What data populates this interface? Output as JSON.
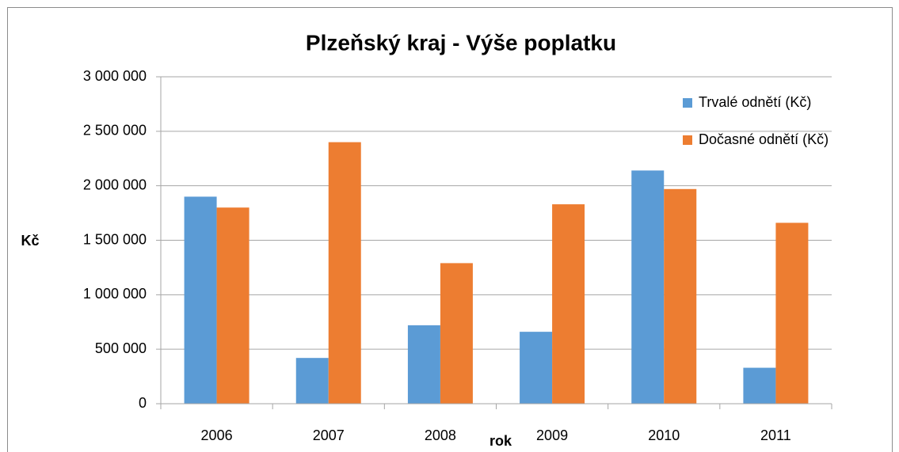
{
  "chart_data": {
    "type": "bar",
    "title": "Plzeňský kraj - Výše poplatku",
    "x_label": "rok",
    "y_label": "Kč",
    "categories": [
      "2006",
      "2007",
      "2008",
      "2009",
      "2010",
      "2011"
    ],
    "series": [
      {
        "name": "Trvalé odnětí (Kč)",
        "color": "#5b9bd5",
        "values": [
          1900000,
          420000,
          720000,
          660000,
          2140000,
          330000
        ]
      },
      {
        "name": "Dočasné odnětí (Kč)",
        "color": "#ed7d31",
        "values": [
          1800000,
          2400000,
          1290000,
          1830000,
          1970000,
          1660000
        ]
      }
    ],
    "ylim": [
      0,
      3000000
    ],
    "yticks": [
      0,
      {
        "value": 500000,
        "label": "500 000"
      },
      {
        "value": 1000000,
        "label": "1 000 000"
      },
      {
        "value": 1500000,
        "label": "1 500 000"
      },
      {
        "value": 2000000,
        "label": "2 000 000"
      },
      {
        "value": 2500000,
        "label": "2 500 000"
      },
      {
        "value": 3000000,
        "label": "3 000 000"
      }
    ],
    "grid": true,
    "legend": "top-right"
  }
}
